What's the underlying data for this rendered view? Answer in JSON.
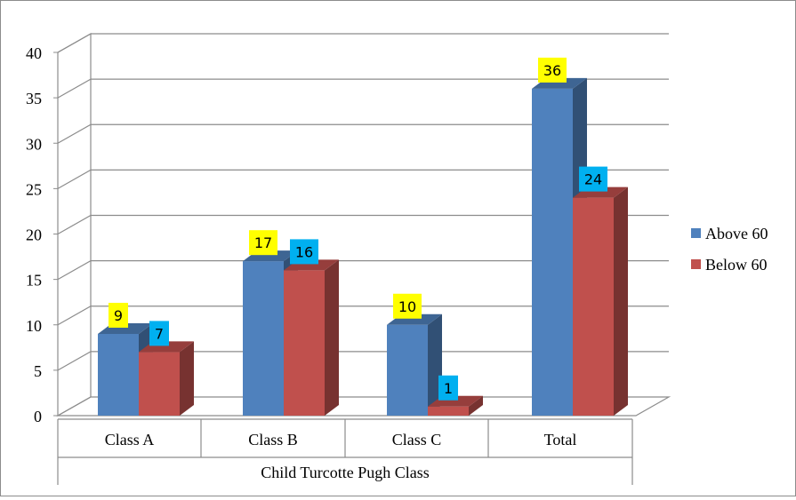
{
  "chart_data": {
    "type": "bar",
    "categories": [
      "Class A",
      "Class B",
      "Class C",
      "Total"
    ],
    "series": [
      {
        "name": "Above 60",
        "values": [
          9,
          17,
          10,
          36
        ],
        "color": "#4f81bd",
        "label_bg": "#ffff00"
      },
      {
        "name": "Below 60",
        "values": [
          7,
          16,
          1,
          24
        ],
        "color": "#c0504d",
        "label_bg": "#00b0f0"
      }
    ],
    "xlabel": "Child Turcotte Pugh Class",
    "ylabel": "",
    "ylim": [
      0,
      40
    ],
    "y_ticks": [
      "0",
      "5",
      "10",
      "15",
      "20",
      "25",
      "30",
      "35",
      "40"
    ],
    "grid": true,
    "legend_position": "right",
    "style": "3d-clustered-column"
  }
}
